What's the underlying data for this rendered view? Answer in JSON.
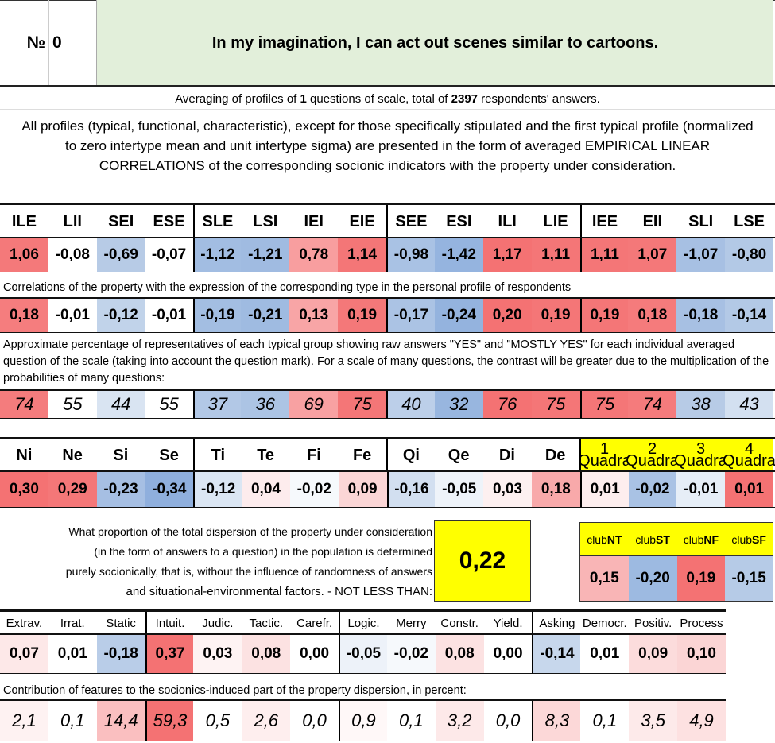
{
  "header": {
    "number_label": "№",
    "number": "0",
    "question": "In my imagination, I can act out scenes similar to cartoons."
  },
  "averaging": {
    "prefix": "Averaging of profiles of ",
    "questions": "1",
    "middle": " questions of scale, total of ",
    "respondents": "2397",
    "suffix": " respondents' answers."
  },
  "all_profiles_text": "All profiles (typical, functional, characteristic), except for those specifically stipulated and the first typical profile (normalized to zero intertype mean and unit intertype sigma) are presented in the form of averaged EMPIRICAL LINEAR CORRELATIONS of the corresponding socionic indicators with the property under consideration.",
  "types": {
    "headers": [
      "ILE",
      "LII",
      "SEI",
      "ESE",
      "SLE",
      "LSI",
      "IEI",
      "EIE",
      "SEE",
      "ESI",
      "ILI",
      "LIE",
      "IEE",
      "EII",
      "SLI",
      "LSE"
    ],
    "profile_values": [
      "1,06",
      "-0,08",
      "-0,69",
      "-0,07",
      "-1,12",
      "-1,21",
      "0,78",
      "1,14",
      "-0,98",
      "-1,42",
      "1,17",
      "1,11",
      "1,11",
      "1,07",
      "-1,07",
      "-0,80"
    ],
    "profile_colors": [
      "#f4797a",
      "#ffffff",
      "#b7cbe6",
      "#ffffff",
      "#a2bde2",
      "#a0bbe1",
      "#f89e9f",
      "#f47677",
      "#a9c2e4",
      "#95b4df",
      "#f47273",
      "#f47677",
      "#f47677",
      "#f47879",
      "#a7c0e3",
      "#b3c9e6"
    ],
    "corr_note": "Correlations of the property with the expression of the corresponding type in the personal profile of respondents",
    "corr_values": [
      "0,18",
      "-0,01",
      "-0,12",
      "-0,01",
      "-0,19",
      "-0,21",
      "0,13",
      "0,19",
      "-0,17",
      "-0,24",
      "0,20",
      "0,19",
      "0,19",
      "0,18",
      "-0,18",
      "-0,14"
    ],
    "corr_colors": [
      "#f57d7e",
      "#ffffff",
      "#c1d3ea",
      "#ffffff",
      "#a3bee2",
      "#9fbbe1",
      "#f8a5a6",
      "#f47879",
      "#abc3e4",
      "#94b3de",
      "#f47273",
      "#f47677",
      "#f47677",
      "#f57b7c",
      "#a7c0e3",
      "#b3c9e6"
    ],
    "pct_note": "Approximate percentage of representatives of each typical group showing raw answers \"YES\" and \"MOSTLY YES\" for each individual averaged question of the scale (taking into account the question mark). For a scale of many questions, the contrast will be greater due to the multiplication of the probabilities of many questions:",
    "pct_values": [
      "74",
      "55",
      "44",
      "55",
      "37",
      "36",
      "69",
      "75",
      "40",
      "32",
      "76",
      "75",
      "75",
      "74",
      "38",
      "43"
    ],
    "pct_colors": [
      "#f47c7d",
      "#ffffff",
      "#d9e4f2",
      "#ffffff",
      "#b2c8e6",
      "#acc4e4",
      "#f8a1a2",
      "#f47677",
      "#bccfe9",
      "#98b6df",
      "#f47273",
      "#f47677",
      "#f47677",
      "#f57b7c",
      "#b7cbe6",
      "#d3e0f0"
    ]
  },
  "functions": {
    "headers": [
      "Ni",
      "Ne",
      "Si",
      "Se",
      "Ti",
      "Te",
      "Fi",
      "Fe",
      "Qi",
      "Qe",
      "Di",
      "De"
    ],
    "values": [
      "0,30",
      "0,29",
      "-0,23",
      "-0,34",
      "-0,12",
      "0,04",
      "-0,02",
      "0,09",
      "-0,16",
      "-0,05",
      "0,03",
      "0,18"
    ],
    "colors": [
      "#f47273",
      "#f47778",
      "#a6bfe3",
      "#8fafdd",
      "#dbe6f3",
      "#fdeced",
      "#f6f9fc",
      "#fbd6d6",
      "#d2dff0",
      "#eef3f9",
      "#fdf0f0",
      "#f8a9aa"
    ],
    "quadra_labels": [
      {
        "num": "1",
        "label": "Quadra"
      },
      {
        "num": "2",
        "label": "Quadra"
      },
      {
        "num": "3",
        "label": "Quadra"
      },
      {
        "num": "4",
        "label": "Quadra"
      }
    ],
    "quadra_values": [
      "0,01",
      "-0,02",
      "-0,01",
      "0,01"
    ],
    "quadra_colors": [
      "#fdeeee",
      "#a9c2e4",
      "#e6eef7",
      "#f47273"
    ]
  },
  "dispersion": {
    "text_lines": [
      "What proportion of the total dispersion of the property under consideration",
      "(in the form of answers to a question) in the population is determined",
      "purely socionically, that is, without the influence of randomness of answers",
      "and situational-environmental factors. - NOT LESS THAN:"
    ],
    "value": "0,22"
  },
  "clubs": {
    "headers": [
      {
        "prefix": "club",
        "bold": "NT"
      },
      {
        "prefix": "club",
        "bold": "ST"
      },
      {
        "prefix": "club",
        "bold": "NF"
      },
      {
        "prefix": "club",
        "bold": "SF"
      }
    ],
    "values": [
      "0,15",
      "-0,20",
      "0,19",
      "-0,15"
    ],
    "colors": [
      "#f9b5b6",
      "#9dbae1",
      "#f47273",
      "#b6cbe7"
    ]
  },
  "features": {
    "headers": [
      "Extrav.",
      "Irrat.",
      "Static",
      "Intuit.",
      "Judic.",
      "Tactic.",
      "Carefr.",
      "Logic.",
      "Merry",
      "Constr.",
      "Yield.",
      "Asking",
      "Democr.",
      "Positiv.",
      "Process"
    ],
    "values": [
      "0,07",
      "0,01",
      "-0,18",
      "0,37",
      "0,03",
      "0,08",
      "0,00",
      "-0,05",
      "-0,02",
      "0,08",
      "0,00",
      "-0,14",
      "0,01",
      "0,09",
      "0,10"
    ],
    "colors": [
      "#fde8e8",
      "#ffffff",
      "#b9cde8",
      "#f47273",
      "#fef3f3",
      "#fce2e2",
      "#ffffff",
      "#edf2f9",
      "#f6f9fc",
      "#fce2e2",
      "#ffffff",
      "#c7d7ec",
      "#ffffff",
      "#fcdcdc",
      "#fbd5d5"
    ],
    "contrib_note": "Contribution of features to the sociоnics-induced part of the property dispersion, in percent:",
    "contrib_values": [
      "2,1",
      "0,1",
      "14,4",
      "59,3",
      "0,5",
      "2,6",
      "0,0",
      "0,9",
      "0,1",
      "3,2",
      "0,0",
      "8,3",
      "0,1",
      "3,5",
      "4,9"
    ],
    "contrib_colors": [
      "#fef2f2",
      "#ffffff",
      "#fabfc0",
      "#f47273",
      "#ffffff",
      "#feeeee",
      "#ffffff",
      "#fff8f8",
      "#ffffff",
      "#fde9e9",
      "#ffffff",
      "#fcd8d8",
      "#ffffff",
      "#fdeaea",
      "#fde1e1"
    ]
  }
}
